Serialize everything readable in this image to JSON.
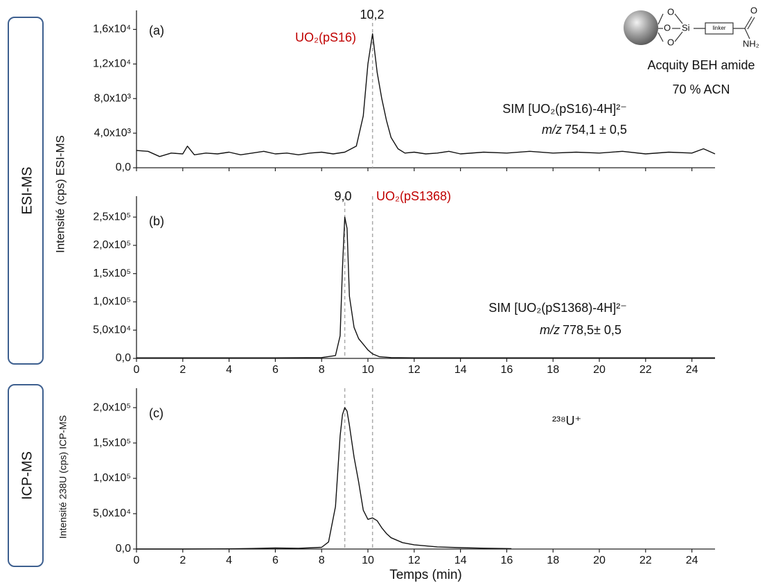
{
  "chart_data": [
    {
      "type": "line",
      "panel_label": "(a)",
      "color": "#111111",
      "compound_label": "UO₂(pS16)",
      "compound_color": "#c00000",
      "peak_label": "10,2",
      "sim_label": "SIM [UO₂(pS16)-4H]²⁻",
      "mz_prefix": "m/z",
      "mz_label": "754,1 ± 0,5",
      "x": [
        0,
        0.5,
        1,
        1.5,
        2,
        2.2,
        2.5,
        3,
        3.5,
        4,
        4.5,
        5,
        5.5,
        6,
        6.5,
        7,
        7.5,
        8,
        8.5,
        9,
        9.5,
        9.8,
        10,
        10.2,
        10.4,
        10.6,
        10.8,
        11,
        11.3,
        11.6,
        12,
        12.5,
        13,
        13.5,
        14,
        15,
        16,
        17,
        18,
        19,
        20,
        21,
        22,
        23,
        24,
        24.5,
        25
      ],
      "values": [
        2000,
        1900,
        1300,
        1700,
        1600,
        2500,
        1500,
        1700,
        1600,
        1800,
        1500,
        1700,
        1900,
        1600,
        1700,
        1500,
        1700,
        1800,
        1600,
        1800,
        2500,
        6000,
        12000,
        15500,
        11000,
        8000,
        5500,
        3500,
        2200,
        1700,
        1800,
        1600,
        1700,
        1900,
        1600,
        1800,
        1700,
        1900,
        1700,
        1800,
        1700,
        1900,
        1600,
        1800,
        1700,
        2200,
        1600
      ],
      "xlim": [
        0,
        25
      ],
      "xticks": [
        0,
        2,
        4,
        6,
        8,
        10,
        12,
        14,
        16,
        18,
        20,
        22,
        24
      ],
      "xtick_labels": false,
      "ylim": [
        0,
        18200
      ],
      "yticks": [
        {
          "value": 0,
          "label": "0,0"
        },
        {
          "value": 4000,
          "label": "4,0x10³"
        },
        {
          "value": 8000,
          "label": "8,0x10³"
        },
        {
          "value": 12000,
          "label": "1,2x10⁴"
        },
        {
          "value": 16000,
          "label": "1,6x10⁴"
        }
      ],
      "reference_lines": [
        10.2
      ]
    },
    {
      "type": "line",
      "panel_label": "(b)",
      "color": "#111111",
      "compound_label": "UO₂(pS1368)",
      "compound_color": "#c00000",
      "peak_label": "9,0",
      "sim_label": "SIM [UO₂(pS1368)-4H]²⁻",
      "mz_prefix": "m/z",
      "mz_label": "778,5± 0,5",
      "x": [
        0,
        2,
        4,
        6,
        8,
        8.6,
        8.8,
        8.9,
        9.0,
        9.1,
        9.2,
        9.4,
        9.6,
        9.8,
        10,
        10.2,
        10.5,
        11,
        12,
        14,
        16,
        18,
        20,
        22,
        24,
        25
      ],
      "values": [
        1000,
        1000,
        1000,
        1000,
        1500,
        5000,
        40000,
        160000,
        250000,
        230000,
        110000,
        55000,
        35000,
        25000,
        15000,
        8000,
        3000,
        1500,
        1000,
        1000,
        1000,
        1000,
        1000,
        1000,
        1000,
        1000
      ],
      "xlim": [
        0,
        25
      ],
      "xticks": [
        0,
        2,
        4,
        6,
        8,
        10,
        12,
        14,
        16,
        18,
        20,
        22,
        24
      ],
      "xtick_labels": true,
      "ylim": [
        0,
        287000
      ],
      "yticks": [
        {
          "value": 0,
          "label": "0,0"
        },
        {
          "value": 50000,
          "label": "5,0x10⁴"
        },
        {
          "value": 100000,
          "label": "1,0x10⁵"
        },
        {
          "value": 150000,
          "label": "1,5x10⁵"
        },
        {
          "value": 200000,
          "label": "2,0x10⁵"
        },
        {
          "value": 250000,
          "label": "2,5x10⁵"
        }
      ],
      "reference_lines": [
        9,
        10.2
      ]
    },
    {
      "type": "line",
      "panel_label": "(c)",
      "color": "#111111",
      "isotope_label": "²³⁸U⁺",
      "xlabel": "Temps (min)",
      "x": [
        0,
        2,
        4,
        5,
        6,
        7,
        8,
        8.3,
        8.6,
        8.8,
        8.9,
        9.0,
        9.1,
        9.2,
        9.4,
        9.6,
        9.8,
        10,
        10.2,
        10.4,
        10.6,
        10.8,
        11,
        11.5,
        12,
        13,
        14,
        15,
        16,
        16.2
      ],
      "values": [
        0,
        0,
        300,
        800,
        1500,
        1000,
        2500,
        10000,
        60000,
        160000,
        190000,
        200000,
        195000,
        175000,
        130000,
        95000,
        55000,
        42000,
        44000,
        40000,
        30000,
        22000,
        16000,
        9000,
        6000,
        3000,
        2000,
        1200,
        700,
        500
      ],
      "xlim": [
        0,
        25
      ],
      "xticks": [
        0,
        2,
        4,
        6,
        8,
        10,
        12,
        14,
        16,
        18,
        20,
        22,
        24
      ],
      "xtick_labels": true,
      "ylim": [
        0,
        227500
      ],
      "yticks": [
        {
          "value": 0,
          "label": "0,0"
        },
        {
          "value": 50000,
          "label": "5,0x10⁴"
        },
        {
          "value": 100000,
          "label": "1,0x10⁵"
        },
        {
          "value": 150000,
          "label": "1,5x10⁵"
        },
        {
          "value": 200000,
          "label": "2,0x10⁵"
        }
      ],
      "reference_lines": [
        9,
        10.2
      ]
    }
  ],
  "sidebar": {
    "esi": "ESI-MS",
    "icp": "ICP-MS"
  },
  "ylabels": {
    "esi": "Intensité (cps) ESI-MS",
    "icp": "Intensité 238U (cps) ICP-MS"
  },
  "stationary_phase": {
    "oxygens": [
      "O",
      "O",
      "O"
    ],
    "silicon": "Si",
    "linker": "linker",
    "carbonyl_oxygen": "O",
    "amine": "NH₂",
    "caption": "Acquity BEH amide",
    "condition": "70 % ACN"
  }
}
